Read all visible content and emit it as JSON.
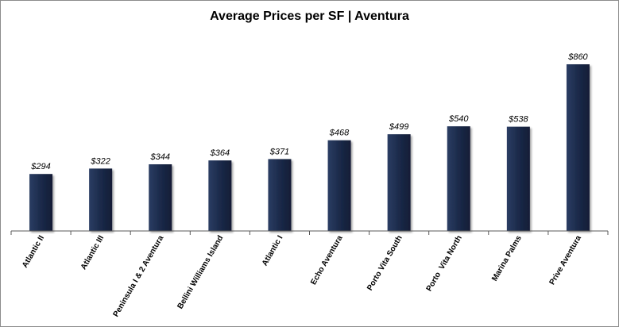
{
  "chart_data": {
    "type": "bar",
    "title": "Average Prices per SF | Aventura",
    "categories": [
      "Atlantic II",
      "Atlantic III",
      "Peninsula I & 2 Aventura",
      "Bellini Williams Island",
      "Atlantic I",
      "Echo Aventura",
      "Porto Vita South",
      "Porto  Vita North",
      "Marina Palms",
      "Prive Aventura"
    ],
    "values": [
      294,
      322,
      344,
      364,
      371,
      468,
      499,
      540,
      538,
      860
    ],
    "value_labels": [
      "$294",
      "$322",
      "$344",
      "$364",
      "$371",
      "$468",
      "$499",
      "$540",
      "$538",
      "$860"
    ],
    "ylim": [
      0,
      1000
    ],
    "grid": false,
    "legend": "none",
    "bar_color": "#1b2a4a"
  }
}
